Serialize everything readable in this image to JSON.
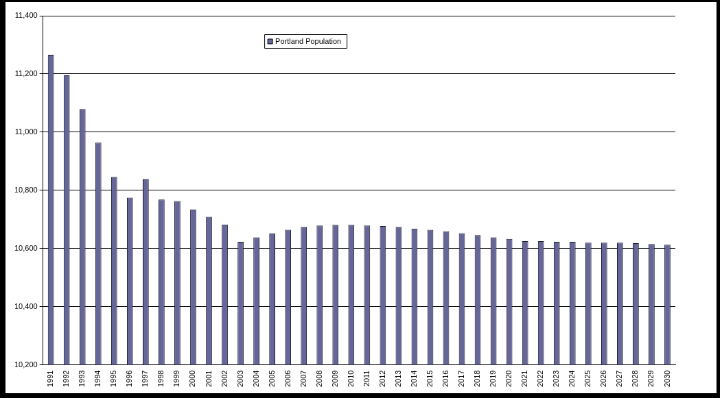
{
  "chart_data": {
    "type": "bar",
    "categories": [
      "1991",
      "1992",
      "1993",
      "1994",
      "1995",
      "1996",
      "1997",
      "1998",
      "1999",
      "2000",
      "2001",
      "2002",
      "2003",
      "2004",
      "2005",
      "2006",
      "2007",
      "2008",
      "2009",
      "2010",
      "2011",
      "2012",
      "2013",
      "2014",
      "2015",
      "2016",
      "2017",
      "2018",
      "2019",
      "2020",
      "2021",
      "2022",
      "2023",
      "2024",
      "2025",
      "2026",
      "2027",
      "2028",
      "2029",
      "2030"
    ],
    "series": [
      {
        "name": "Portland Population",
        "color": "#666699",
        "values": [
          11266,
          11195,
          11079,
          10964,
          10846,
          10775,
          10839,
          10768,
          10763,
          10734,
          10709,
          10682,
          10623,
          10638,
          10652,
          10664,
          10674,
          10679,
          10681,
          10681,
          10679,
          10677,
          10674,
          10668,
          10664,
          10659,
          10652,
          10646,
          10638,
          10633,
          10625,
          10625,
          10623,
          10623,
          10620,
          10620,
          10620,
          10618,
          10615,
          10613
        ]
      }
    ],
    "ylim": [
      10200,
      11400
    ],
    "yticks": [
      {
        "value": 10200,
        "label": "10,200"
      },
      {
        "value": 10400,
        "label": "10,400"
      },
      {
        "value": 10600,
        "label": "10,600"
      },
      {
        "value": 10800,
        "label": "10,800"
      },
      {
        "value": 11000,
        "label": "11,000"
      },
      {
        "value": 11200,
        "label": "11,200"
      },
      {
        "value": 11400,
        "label": "11,400"
      }
    ],
    "grid": "y",
    "legend": "top"
  }
}
